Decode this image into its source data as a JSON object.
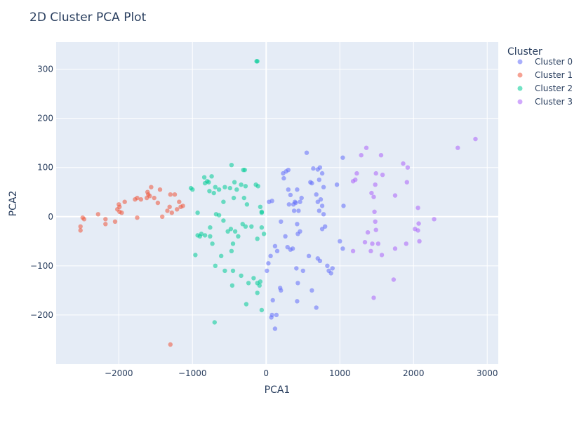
{
  "chart_data": {
    "type": "scatter",
    "title": "2D Cluster PCA Plot",
    "xlabel": "PCA1",
    "ylabel": "PCA2",
    "xlim": [
      -2850,
      3150
    ],
    "ylim": [
      -300,
      355
    ],
    "xticks": [
      -2000,
      -1000,
      0,
      1000,
      2000,
      3000
    ],
    "xtick_labels": [
      "−2000",
      "−1000",
      "0",
      "1000",
      "2000",
      "3000"
    ],
    "yticks": [
      -200,
      -100,
      0,
      100,
      200,
      300
    ],
    "ytick_labels": [
      "−200",
      "−100",
      "0",
      "100",
      "200",
      "300"
    ],
    "grid": true,
    "legend_title": "Cluster",
    "legend_position": "top-right",
    "series": [
      {
        "name": "Cluster 0",
        "color": "#636efa",
        "points": [
          [
            40,
            30
          ],
          [
            80,
            32
          ],
          [
            230,
            88
          ],
          [
            270,
            92
          ],
          [
            300,
            95
          ],
          [
            240,
            78
          ],
          [
            300,
            55
          ],
          [
            330,
            44
          ],
          [
            310,
            25
          ],
          [
            370,
            25
          ],
          [
            390,
            30
          ],
          [
            400,
            28
          ],
          [
            380,
            12
          ],
          [
            420,
            55
          ],
          [
            440,
            12
          ],
          [
            460,
            30
          ],
          [
            480,
            38
          ],
          [
            550,
            130
          ],
          [
            600,
            70
          ],
          [
            620,
            68
          ],
          [
            640,
            98
          ],
          [
            700,
            96
          ],
          [
            730,
            100
          ],
          [
            760,
            88
          ],
          [
            720,
            75
          ],
          [
            680,
            45
          ],
          [
            700,
            30
          ],
          [
            720,
            12
          ],
          [
            740,
            35
          ],
          [
            780,
            60
          ],
          [
            760,
            22
          ],
          [
            760,
            -25
          ],
          [
            800,
            -20
          ],
          [
            780,
            5
          ],
          [
            960,
            65
          ],
          [
            1040,
            120
          ],
          [
            1050,
            22
          ],
          [
            1000,
            -50
          ],
          [
            1040,
            -65
          ],
          [
            200,
            -10
          ],
          [
            260,
            -40
          ],
          [
            290,
            -62
          ],
          [
            330,
            -67
          ],
          [
            360,
            -65
          ],
          [
            430,
            -35
          ],
          [
            460,
            -30
          ],
          [
            420,
            -15
          ],
          [
            120,
            -60
          ],
          [
            150,
            -70
          ],
          [
            60,
            -80
          ],
          [
            30,
            -95
          ],
          [
            10,
            -110
          ],
          [
            90,
            -170
          ],
          [
            190,
            -145
          ],
          [
            200,
            -150
          ],
          [
            80,
            -200
          ],
          [
            70,
            -205
          ],
          [
            120,
            -228
          ],
          [
            140,
            -200
          ],
          [
            500,
            -110
          ],
          [
            410,
            -105
          ],
          [
            580,
            -80
          ],
          [
            620,
            -150
          ],
          [
            680,
            -185
          ],
          [
            430,
            -135
          ],
          [
            420,
            -172
          ],
          [
            700,
            -85
          ],
          [
            730,
            -90
          ],
          [
            830,
            -100
          ],
          [
            850,
            -110
          ],
          [
            880,
            -115
          ],
          [
            900,
            -105
          ]
        ]
      },
      {
        "name": "Cluster 1",
        "color": "#ef553b",
        "points": [
          [
            -2520,
            -20
          ],
          [
            -2520,
            -28
          ],
          [
            -2490,
            -2
          ],
          [
            -2470,
            -5
          ],
          [
            -2280,
            5
          ],
          [
            -2180,
            -5
          ],
          [
            -2180,
            -15
          ],
          [
            -2050,
            -10
          ],
          [
            -2020,
            15
          ],
          [
            -2000,
            25
          ],
          [
            -1990,
            10
          ],
          [
            -1960,
            8
          ],
          [
            -1920,
            30
          ],
          [
            -1990,
            20
          ],
          [
            -1780,
            35
          ],
          [
            -1750,
            38
          ],
          [
            -1750,
            -2
          ],
          [
            -1700,
            35
          ],
          [
            -1620,
            38
          ],
          [
            -1610,
            50
          ],
          [
            -1600,
            45
          ],
          [
            -1580,
            42
          ],
          [
            -1560,
            60
          ],
          [
            -1520,
            38
          ],
          [
            -1470,
            28
          ],
          [
            -1440,
            55
          ],
          [
            -1410,
            0
          ],
          [
            -1340,
            12
          ],
          [
            -1310,
            20
          ],
          [
            -1300,
            45
          ],
          [
            -1280,
            8
          ],
          [
            -1240,
            45
          ],
          [
            -1210,
            15
          ],
          [
            -1180,
            30
          ],
          [
            -1160,
            20
          ],
          [
            -1130,
            22
          ],
          [
            -1300,
            -260
          ]
        ]
      },
      {
        "name": "Cluster 2",
        "color": "#00cc96",
        "points": [
          [
            -130,
            316
          ],
          [
            -120,
            316
          ],
          [
            -1020,
            58
          ],
          [
            -1000,
            55
          ],
          [
            -840,
            80
          ],
          [
            -830,
            68
          ],
          [
            -800,
            72
          ],
          [
            -780,
            70
          ],
          [
            -770,
            52
          ],
          [
            -740,
            82
          ],
          [
            -710,
            48
          ],
          [
            -690,
            60
          ],
          [
            -640,
            55
          ],
          [
            -580,
            30
          ],
          [
            -560,
            60
          ],
          [
            -490,
            58
          ],
          [
            -470,
            105
          ],
          [
            -440,
            38
          ],
          [
            -430,
            70
          ],
          [
            -400,
            55
          ],
          [
            -340,
            65
          ],
          [
            -310,
            95
          ],
          [
            -290,
            95
          ],
          [
            -280,
            62
          ],
          [
            -300,
            38
          ],
          [
            -260,
            25
          ],
          [
            -140,
            65
          ],
          [
            -110,
            62
          ],
          [
            -80,
            20
          ],
          [
            -60,
            10
          ],
          [
            -60,
            8
          ],
          [
            -930,
            8
          ],
          [
            -880,
            -35
          ],
          [
            -830,
            -38
          ],
          [
            -760,
            -40
          ],
          [
            -730,
            -55
          ],
          [
            -760,
            -22
          ],
          [
            -680,
            5
          ],
          [
            -640,
            3
          ],
          [
            -580,
            -8
          ],
          [
            -520,
            -30
          ],
          [
            -480,
            -25
          ],
          [
            -450,
            -55
          ],
          [
            -470,
            -70
          ],
          [
            -420,
            -30
          ],
          [
            -380,
            -40
          ],
          [
            -320,
            -15
          ],
          [
            -280,
            -20
          ],
          [
            -200,
            -20
          ],
          [
            -120,
            -45
          ],
          [
            -60,
            -22
          ],
          [
            -30,
            -35
          ],
          [
            -960,
            -78
          ],
          [
            -930,
            -38
          ],
          [
            -900,
            -40
          ],
          [
            -690,
            -100
          ],
          [
            -610,
            -80
          ],
          [
            -560,
            -110
          ],
          [
            -460,
            -140
          ],
          [
            -450,
            -110
          ],
          [
            -340,
            -120
          ],
          [
            -240,
            -135
          ],
          [
            -170,
            -125
          ],
          [
            -120,
            -135
          ],
          [
            -80,
            -132
          ],
          [
            -90,
            -140
          ],
          [
            -120,
            -155
          ],
          [
            -270,
            -178
          ],
          [
            -60,
            -190
          ],
          [
            -700,
            -215
          ]
        ]
      },
      {
        "name": "Cluster 3",
        "color": "#ab63fa",
        "points": [
          [
            1290,
            125
          ],
          [
            1360,
            140
          ],
          [
            1560,
            125
          ],
          [
            1860,
            108
          ],
          [
            1920,
            100
          ],
          [
            1490,
            88
          ],
          [
            1580,
            85
          ],
          [
            1230,
            88
          ],
          [
            1210,
            75
          ],
          [
            1180,
            72
          ],
          [
            1430,
            48
          ],
          [
            1460,
            40
          ],
          [
            1480,
            65
          ],
          [
            1750,
            43
          ],
          [
            1910,
            70
          ],
          [
            2060,
            18
          ],
          [
            1470,
            10
          ],
          [
            2280,
            -5
          ],
          [
            2020,
            -25
          ],
          [
            2060,
            -28
          ],
          [
            2070,
            -14
          ],
          [
            1380,
            -32
          ],
          [
            1490,
            -27
          ],
          [
            1480,
            -10
          ],
          [
            2600,
            140
          ],
          [
            2840,
            158
          ],
          [
            1180,
            -70
          ],
          [
            1340,
            -52
          ],
          [
            1420,
            -70
          ],
          [
            1440,
            -55
          ],
          [
            1520,
            -55
          ],
          [
            1570,
            -78
          ],
          [
            1750,
            -65
          ],
          [
            1900,
            -55
          ],
          [
            2080,
            -50
          ],
          [
            1730,
            -128
          ],
          [
            1460,
            -165
          ]
        ]
      }
    ]
  }
}
